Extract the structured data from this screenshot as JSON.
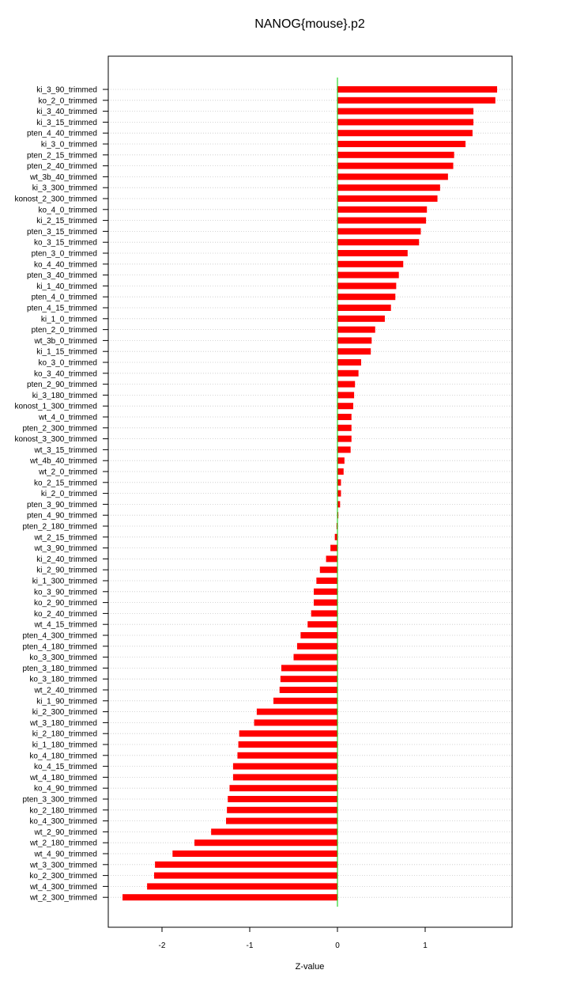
{
  "chart_data": {
    "type": "bar",
    "orientation": "horizontal",
    "title": "NANOG{mouse}.p2",
    "xlabel": "Z-value",
    "ylabel": "",
    "xlim": [
      -2.62,
      1.99
    ],
    "xticks": [
      -2,
      -1,
      0,
      1
    ],
    "xtick_labels": [
      "-2",
      "-1",
      "0",
      "1"
    ],
    "bar_color": "#ff0000",
    "zero_line_color": "#00cc00",
    "grid": "horizontal dotted guide lines",
    "categories": [
      "ki_3_90_trimmed",
      "ko_2_0_trimmed",
      "ki_3_40_trimmed",
      "ki_3_15_trimmed",
      "pten_4_40_trimmed",
      "ki_3_0_trimmed",
      "pten_2_15_trimmed",
      "pten_2_40_trimmed",
      "wt_3b_40_trimmed",
      "ki_3_300_trimmed",
      "konost_2_300_trimmed",
      "ko_4_0_trimmed",
      "ki_2_15_trimmed",
      "pten_3_15_trimmed",
      "ko_3_15_trimmed",
      "pten_3_0_trimmed",
      "ko_4_40_trimmed",
      "pten_3_40_trimmed",
      "ki_1_40_trimmed",
      "pten_4_0_trimmed",
      "pten_4_15_trimmed",
      "ki_1_0_trimmed",
      "pten_2_0_trimmed",
      "wt_3b_0_trimmed",
      "ki_1_15_trimmed",
      "ko_3_0_trimmed",
      "ko_3_40_trimmed",
      "pten_2_90_trimmed",
      "ki_3_180_trimmed",
      "konost_1_300_trimmed",
      "wt_4_0_trimmed",
      "pten_2_300_trimmed",
      "konost_3_300_trimmed",
      "wt_3_15_trimmed",
      "wt_4b_40_trimmed",
      "wt_2_0_trimmed",
      "ko_2_15_trimmed",
      "ki_2_0_trimmed",
      "pten_3_90_trimmed",
      "pten_4_90_trimmed",
      "pten_2_180_trimmed",
      "wt_2_15_trimmed",
      "wt_3_90_trimmed",
      "ki_2_40_trimmed",
      "ki_2_90_trimmed",
      "ki_1_300_trimmed",
      "ko_3_90_trimmed",
      "ko_2_90_trimmed",
      "ko_2_40_trimmed",
      "wt_4_15_trimmed",
      "pten_4_300_trimmed",
      "pten_4_180_trimmed",
      "ko_3_300_trimmed",
      "pten_3_180_trimmed",
      "ko_3_180_trimmed",
      "wt_2_40_trimmed",
      "ki_1_90_trimmed",
      "ki_2_300_trimmed",
      "wt_3_180_trimmed",
      "ki_2_180_trimmed",
      "ki_1_180_trimmed",
      "ko_4_180_trimmed",
      "ko_4_15_trimmed",
      "wt_4_180_trimmed",
      "ko_4_90_trimmed",
      "pten_3_300_trimmed",
      "ko_2_180_trimmed",
      "ko_4_300_trimmed",
      "wt_2_90_trimmed",
      "wt_2_180_trimmed",
      "wt_4_90_trimmed",
      "wt_3_300_trimmed",
      "ko_2_300_trimmed",
      "wt_4_300_trimmed",
      "wt_2_300_trimmed"
    ],
    "values": [
      1.82,
      1.8,
      1.55,
      1.55,
      1.54,
      1.46,
      1.33,
      1.32,
      1.26,
      1.17,
      1.14,
      1.02,
      1.01,
      0.95,
      0.93,
      0.8,
      0.75,
      0.7,
      0.67,
      0.66,
      0.61,
      0.54,
      0.43,
      0.39,
      0.38,
      0.27,
      0.24,
      0.2,
      0.19,
      0.18,
      0.16,
      0.16,
      0.16,
      0.15,
      0.08,
      0.07,
      0.04,
      0.04,
      0.03,
      0.01,
      -0.01,
      -0.03,
      -0.08,
      -0.13,
      -0.2,
      -0.24,
      -0.27,
      -0.27,
      -0.3,
      -0.34,
      -0.42,
      -0.46,
      -0.5,
      -0.64,
      -0.65,
      -0.66,
      -0.73,
      -0.92,
      -0.95,
      -1.12,
      -1.13,
      -1.14,
      -1.19,
      -1.19,
      -1.23,
      -1.25,
      -1.26,
      -1.27,
      -1.44,
      -1.63,
      -1.88,
      -2.08,
      -2.09,
      -2.17,
      -2.45
    ]
  }
}
